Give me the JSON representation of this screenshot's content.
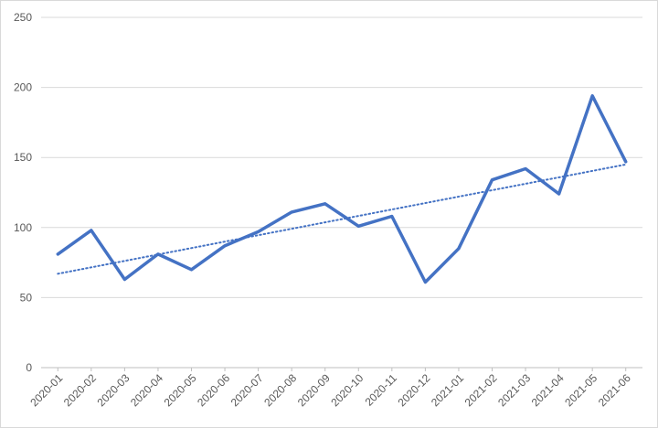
{
  "chart_data": {
    "type": "line",
    "title": "",
    "xlabel": "",
    "ylabel": "",
    "categories": [
      "2020-01",
      "2020-02",
      "2020-03",
      "2020-04",
      "2020-05",
      "2020-06",
      "2020-07",
      "2020-08",
      "2020-09",
      "2020-10",
      "2020-11",
      "2020-12",
      "2021-01",
      "2021-02",
      "2021-03",
      "2021-04",
      "2021-05",
      "2021-06"
    ],
    "series": [
      {
        "values": [
          81,
          98,
          63,
          81,
          70,
          87,
          97,
          111,
          117,
          101,
          108,
          61,
          85,
          134,
          142,
          124,
          194,
          147
        ],
        "color": "#4472c4"
      }
    ],
    "trendline": {
      "type": "linear",
      "style": "dotted",
      "start": 67,
      "end": 145,
      "color": "#4472c4"
    },
    "ylim": [
      0,
      250
    ],
    "yticks": [
      0,
      50,
      100,
      150,
      200,
      250
    ],
    "grid": true,
    "legend": "none",
    "gridline_color": "#d9d9d9",
    "axis_color": "#bfbfbf"
  }
}
